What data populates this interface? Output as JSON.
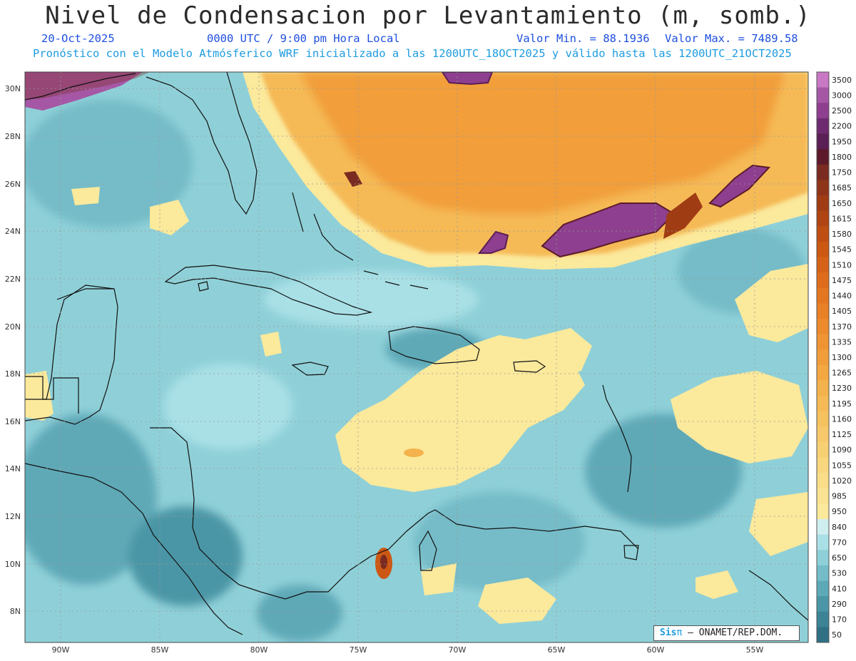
{
  "header": {
    "title": "Nivel de Condensacion por Levantamiento (m, somb.)",
    "date": "20-Oct-2025",
    "time": "0000 UTC / 9:00 pm Hora Local",
    "min_label": "Valor Min. = 88.1936",
    "max_label": "Valor Max. = 7489.58",
    "forecast_text": "Pronóstico con el Modelo Atmósferico WRF inicializado a las 1200UTC_18OCT2025 y válido hasta las  1200UTC_21OCT2025"
  },
  "map": {
    "lon_labels": [
      "90W",
      "85W",
      "80W",
      "75W",
      "70W",
      "65W",
      "60W",
      "55W"
    ],
    "lat_labels": [
      "30N",
      "28N",
      "26N",
      "24N",
      "22N",
      "20N",
      "18N",
      "16N",
      "14N",
      "12N",
      "10N",
      "8N"
    ],
    "ocean_color": "#8fd0d8",
    "land_color": "#6fb0bb",
    "dry_color": "#f0a84a"
  },
  "legend": {
    "levels": [
      "3500",
      "3000",
      "2500",
      "2200",
      "1950",
      "1800",
      "1750",
      "1685",
      "1650",
      "1615",
      "1580",
      "1545",
      "1510",
      "1475",
      "1440",
      "1405",
      "1370",
      "1335",
      "1300",
      "1265",
      "1230",
      "1195",
      "1160",
      "1125",
      "1090",
      "1055",
      "1020",
      "985",
      "950",
      "840",
      "770",
      "650",
      "530",
      "410",
      "290",
      "170",
      "50"
    ],
    "colors": [
      "#c978c4",
      "#a557a5",
      "#8e3f8f",
      "#6e2a6e",
      "#5a1f55",
      "#5c1a2a",
      "#7a2a20",
      "#8e3418",
      "#a03c14",
      "#b04412",
      "#bf4e12",
      "#cc5814",
      "#d66218",
      "#de6c1c",
      "#e47620",
      "#e88026",
      "#ec8a2c",
      "#ef9432",
      "#f19e3a",
      "#f3a842",
      "#f4b24c",
      "#f5ba56",
      "#f6c260",
      "#f7c96a",
      "#f8d074",
      "#f9d77e",
      "#f9dd88",
      "#fae392",
      "#fbe99c",
      "#cfeef0",
      "#a9e0e6",
      "#8fd0d8",
      "#74bcc8",
      "#5ea9b7",
      "#4b96a6",
      "#3d8396",
      "#2f7085"
    ]
  },
  "credit": {
    "brand": "Sis",
    "pi": "π",
    "text": "– ONAMET/REP.DOM."
  }
}
